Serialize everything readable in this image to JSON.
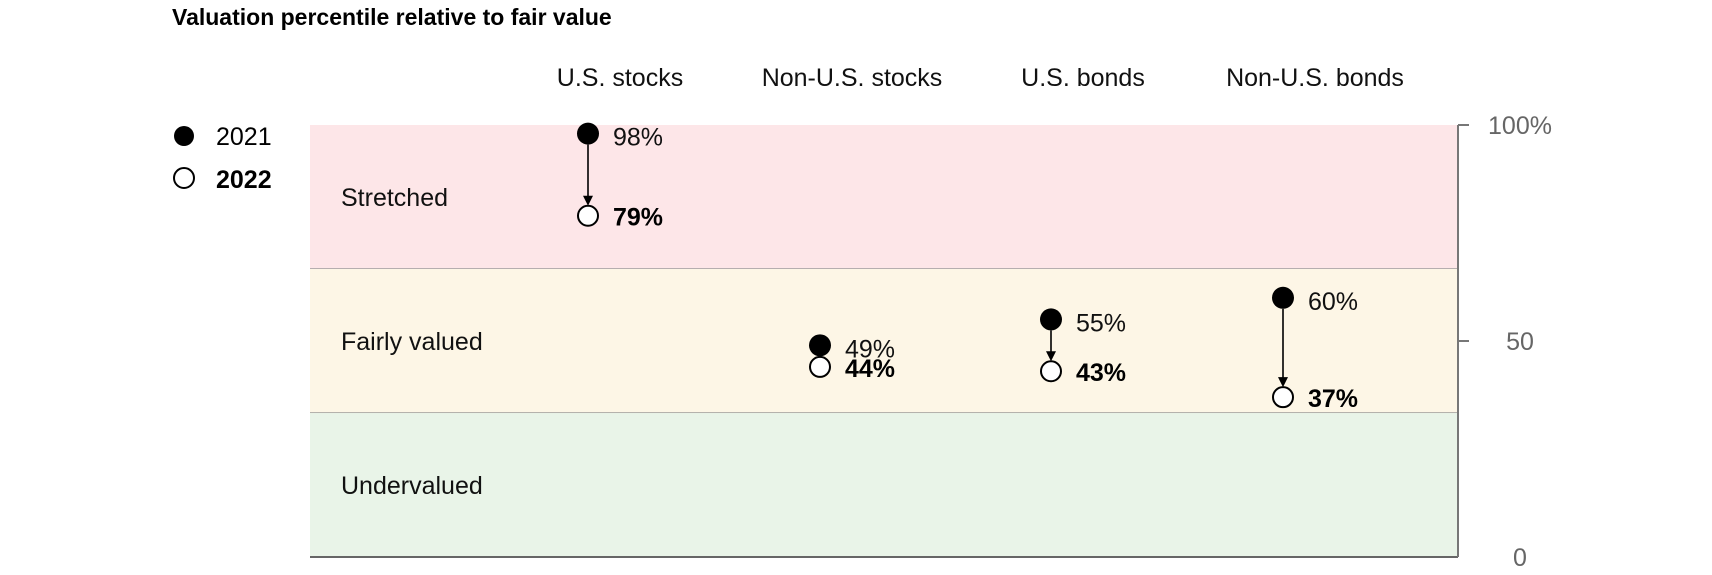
{
  "chart_data": {
    "type": "scatter",
    "title": "Valuation percentile relative to fair value",
    "categories": [
      "U.S. stocks",
      "Non-U.S. stocks",
      "U.S. bonds",
      "Non-U.S. bonds"
    ],
    "series": [
      {
        "name": "2021",
        "marker": "filled",
        "values": [
          98,
          49,
          55,
          60
        ],
        "labels": [
          "98%",
          "49%",
          "55%",
          "60%"
        ]
      },
      {
        "name": "2022",
        "marker": "hollow",
        "values": [
          79,
          44,
          43,
          37
        ],
        "labels": [
          "79%",
          "44%",
          "43%",
          "37%"
        ]
      }
    ],
    "bands": [
      {
        "label": "Stretched",
        "from": 66.67,
        "to": 100,
        "color": "#fde6e8"
      },
      {
        "label": "Fairly valued",
        "from": 33.33,
        "to": 66.67,
        "color": "#fdf6e6"
      },
      {
        "label": "Undervalued",
        "from": 0,
        "to": 33.33,
        "color": "#e9f4e8"
      }
    ],
    "y_axis": {
      "position": "right",
      "ticks": [
        0,
        50,
        100
      ],
      "tick_labels": [
        "0",
        "50",
        "100%"
      ]
    },
    "ylim": [
      0,
      100
    ],
    "legend": "top-left"
  }
}
